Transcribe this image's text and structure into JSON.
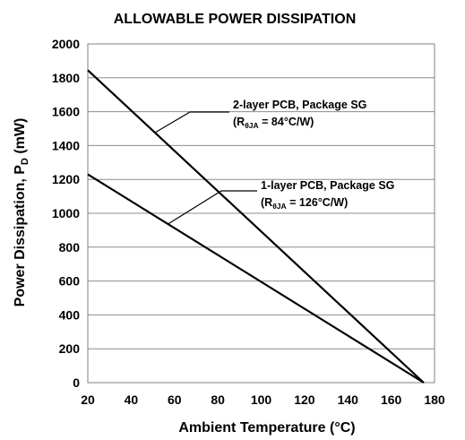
{
  "chart_data": {
    "type": "line",
    "title": "ALLOWABLE POWER DISSIPATION",
    "xlabel": "Ambient Temperature (°C)",
    "ylabel": "Power Dissipation, P",
    "ylabel_sub": "D",
    "ylabel_unit": " (mW)",
    "xlim": [
      20,
      180
    ],
    "ylim": [
      0,
      2000
    ],
    "xticks": [
      20,
      40,
      60,
      80,
      100,
      120,
      140,
      160,
      180
    ],
    "yticks": [
      0,
      200,
      400,
      600,
      800,
      1000,
      1200,
      1400,
      1600,
      1800,
      2000
    ],
    "grid": "horizontal",
    "series": [
      {
        "x": [
          20,
          175
        ],
        "y": [
          1845,
          0
        ],
        "label_line1": "2-layer PCB, Package SG",
        "label_r": "(R",
        "label_sub": "θJA",
        "label_val": " = 84°C/W)"
      },
      {
        "x": [
          20,
          175
        ],
        "y": [
          1230,
          0
        ],
        "label_line1": "1-layer PCB, Package SG",
        "label_r": "(R",
        "label_sub": "θJA",
        "label_val": " = 126°C/W)"
      }
    ]
  }
}
